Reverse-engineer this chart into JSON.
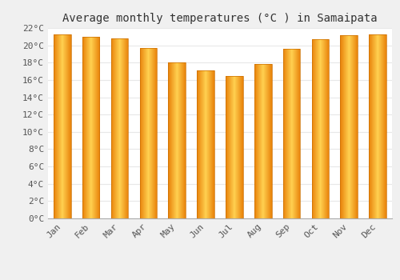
{
  "title": "Average monthly temperatures (°C ) in Samaipata",
  "months": [
    "Jan",
    "Feb",
    "Mar",
    "Apr",
    "May",
    "Jun",
    "Jul",
    "Aug",
    "Sep",
    "Oct",
    "Nov",
    "Dec"
  ],
  "values": [
    21.3,
    21.0,
    20.8,
    19.7,
    18.0,
    17.1,
    16.5,
    17.8,
    19.6,
    20.7,
    21.2,
    21.3
  ],
  "bar_color_left": "#E8820A",
  "bar_color_center": "#FFD050",
  "bar_color_right": "#E8820A",
  "ylim": [
    0,
    22
  ],
  "background_color": "#f0f0f0",
  "plot_bg_color": "#ffffff",
  "grid_color": "#e8e8e8",
  "title_fontsize": 10,
  "tick_fontsize": 8,
  "font_family": "monospace"
}
